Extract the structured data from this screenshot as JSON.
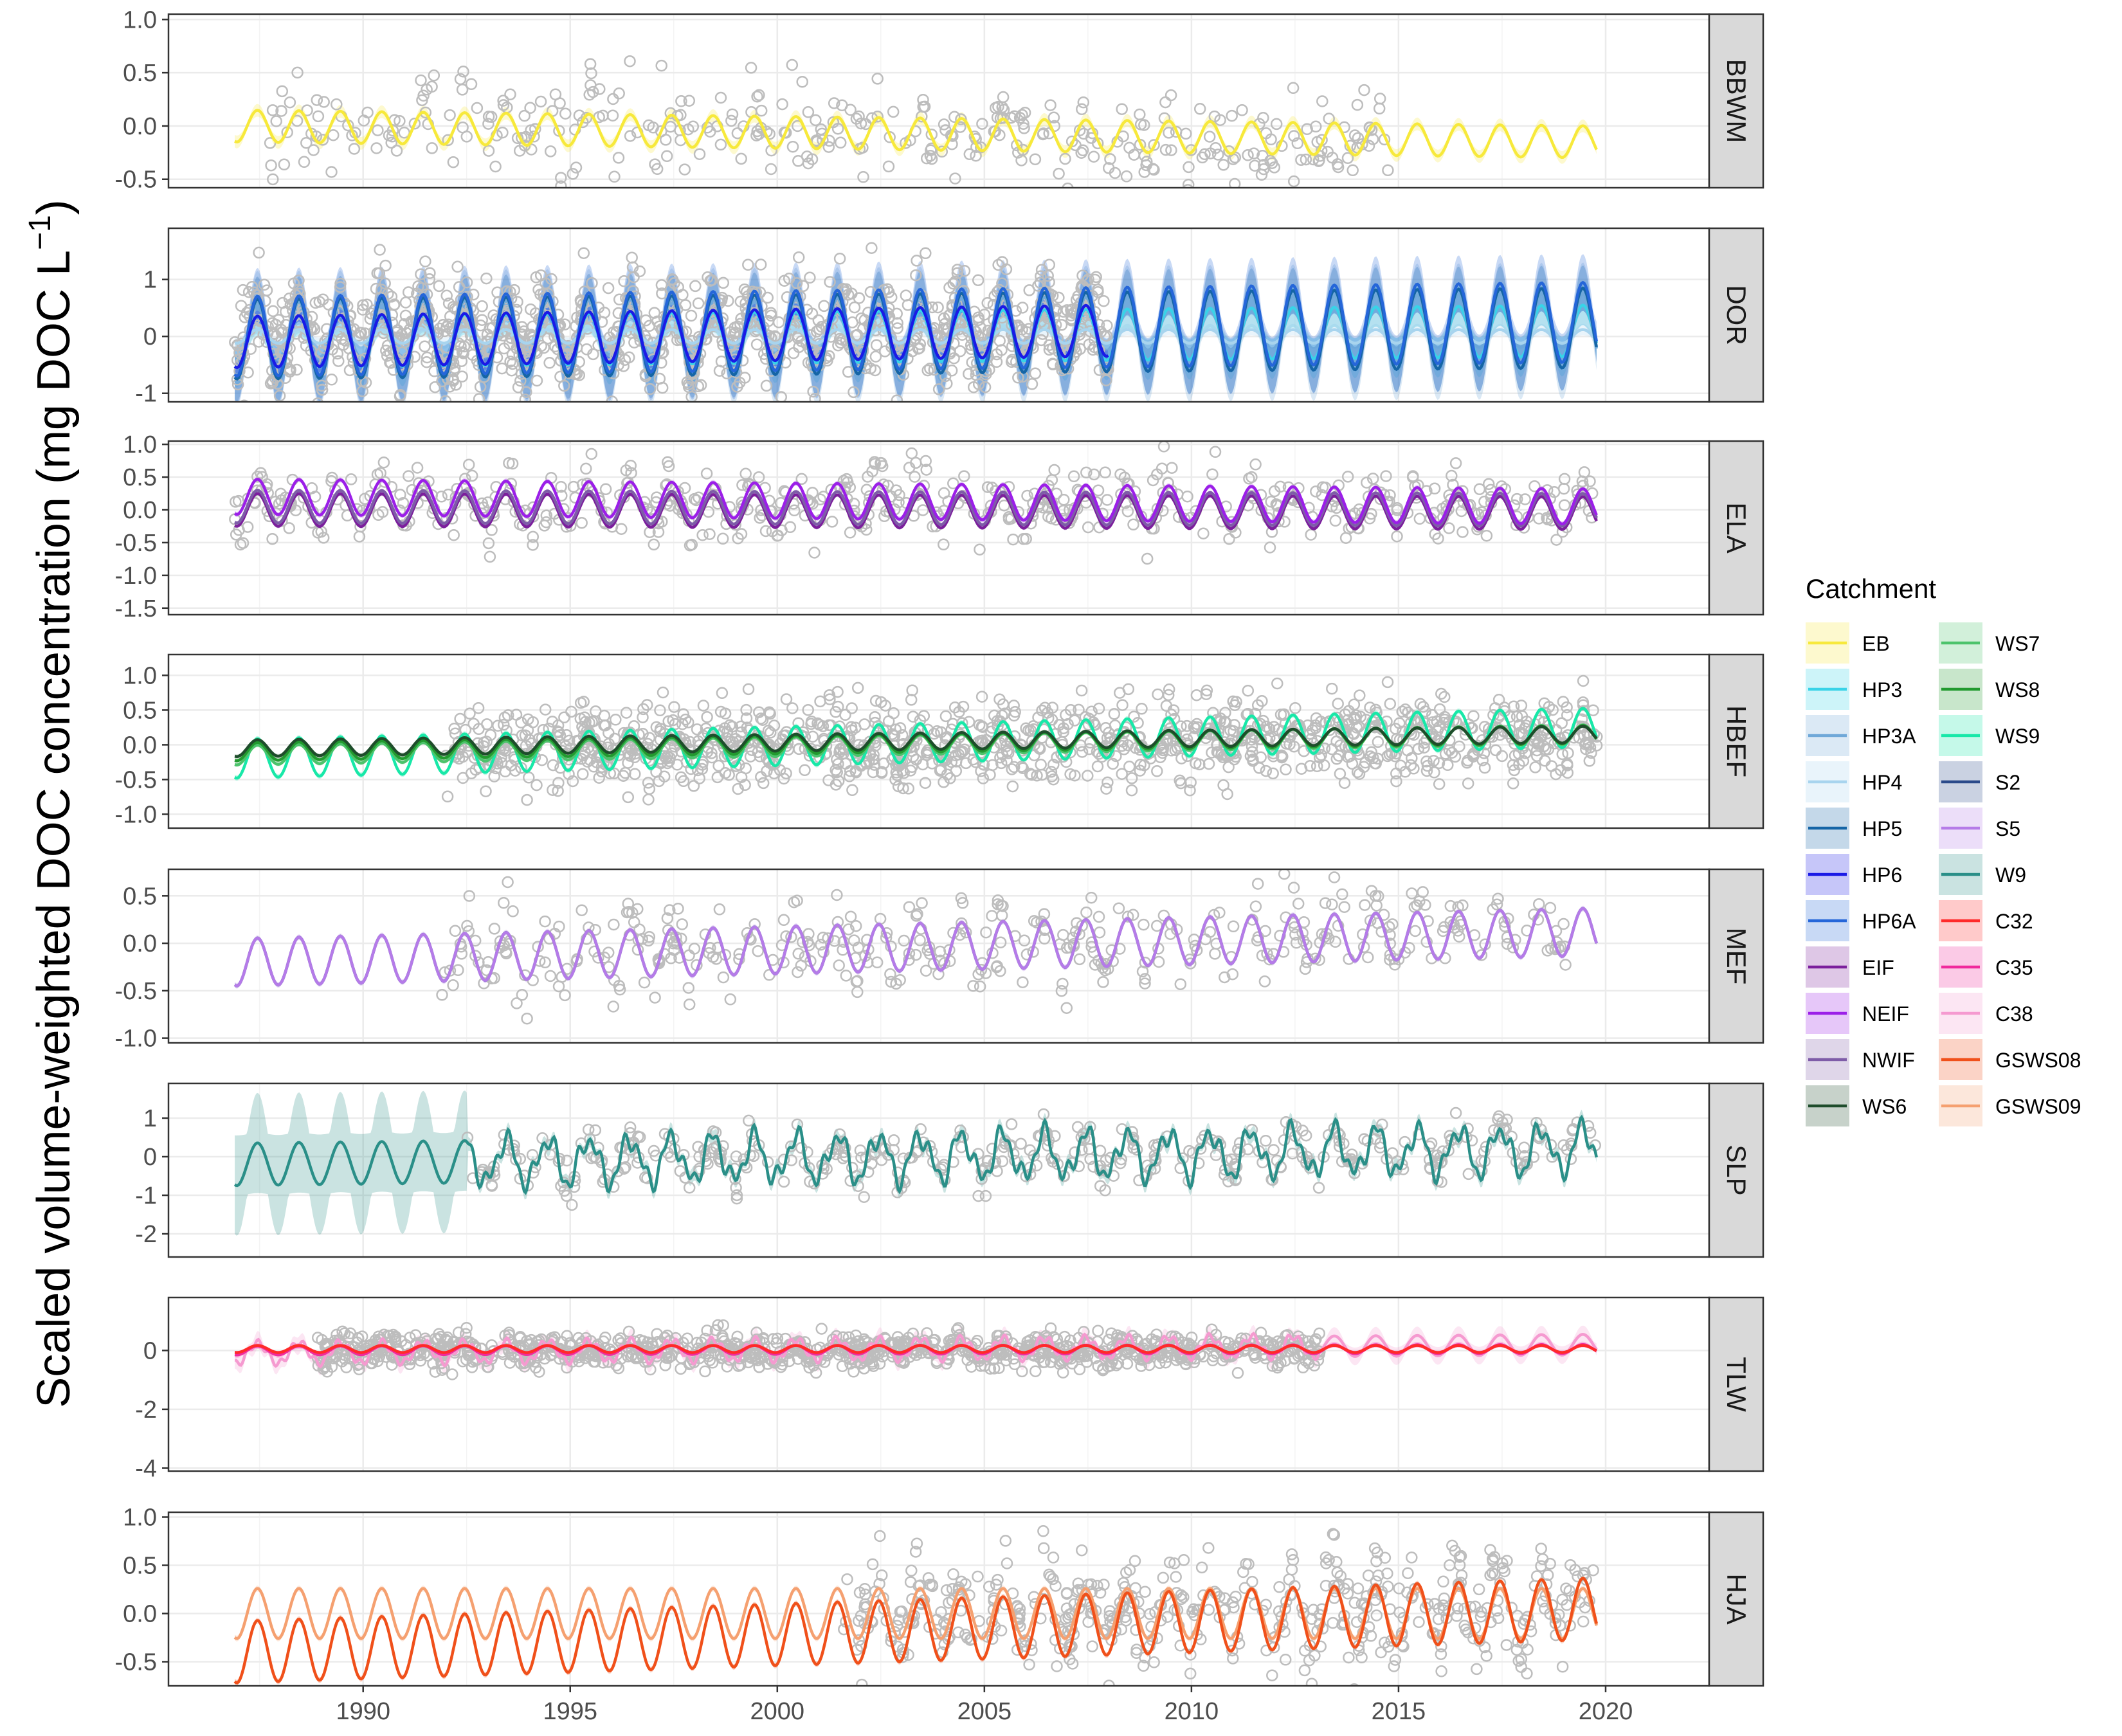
{
  "chart_data": {
    "type": "line",
    "y_axis_label": "Scaled volume-weighted DOC concentration (mg DOC L",
    "y_axis_label_sup": "−1",
    "y_axis_label_end": ")",
    "x_ticks": [
      1990,
      1995,
      2000,
      2005,
      2010,
      2015,
      2020
    ],
    "xlim": [
      1985.3,
      2022.5
    ],
    "legend_title": "Catchment",
    "legend": [
      {
        "name": "EB",
        "color": "#f7e93b"
      },
      {
        "name": "HP3",
        "color": "#39d3e8"
      },
      {
        "name": "HP3A",
        "color": "#6fa8d8"
      },
      {
        "name": "HP4",
        "color": "#a8d4ee"
      },
      {
        "name": "HP5",
        "color": "#1565a6"
      },
      {
        "name": "HP6",
        "color": "#1a1ae6"
      },
      {
        "name": "HP6A",
        "color": "#2566d9"
      },
      {
        "name": "EIF",
        "color": "#7b1f9c"
      },
      {
        "name": "NEIF",
        "color": "#9b1fe8"
      },
      {
        "name": "NWIF",
        "color": "#7e5ca8"
      },
      {
        "name": "WS6",
        "color": "#1e4d2b"
      },
      {
        "name": "WS7",
        "color": "#4cc36b"
      },
      {
        "name": "WS8",
        "color": "#229a2f"
      },
      {
        "name": "WS9",
        "color": "#18e8a8"
      },
      {
        "name": "S2",
        "color": "#2a4a8a"
      },
      {
        "name": "S5",
        "color": "#b57be8"
      },
      {
        "name": "W9",
        "color": "#2a8f88"
      },
      {
        "name": "C32",
        "color": "#ff2a2a"
      },
      {
        "name": "C35",
        "color": "#f02a9c"
      },
      {
        "name": "C38",
        "color": "#f59ad0"
      },
      {
        "name": "GSWS08",
        "color": "#f0501a"
      },
      {
        "name": "GSWS09",
        "color": "#f5a070"
      }
    ],
    "panels": [
      {
        "strip": "BBWM",
        "ylim": [
          -0.58,
          1.05
        ],
        "yticks": [
          1.0,
          0.5,
          0.0,
          -0.5
        ],
        "tick_labels": [
          "1.0",
          "0.5",
          "0.0",
          "-0.5"
        ],
        "obs_range": [
          1987.7,
          2014.8
        ],
        "obs_per_year": 14,
        "obs_spread": 0.22,
        "obs_trend": [
          0.05,
          -0.15
        ],
        "series": [
          {
            "name": "EB",
            "color": "#f7e93b",
            "start": 1986.9,
            "end": 2019.8,
            "amp": 0.15,
            "trend": [
              0.0,
              -0.15
            ],
            "band": 0.06
          }
        ]
      },
      {
        "strip": "DOR",
        "ylim": [
          -1.15,
          1.9
        ],
        "yticks": [
          1,
          0,
          -1
        ],
        "tick_labels": [
          "1",
          "0",
          "-1"
        ],
        "obs_range": [
          1986.9,
          2008.0
        ],
        "obs_per_year": 55,
        "obs_spread": 0.45,
        "obs_trend": [
          0.0,
          0.2
        ],
        "series": [
          {
            "name": "HP4",
            "color": "#a8d4ee",
            "start": 1986.9,
            "end": 2019.8,
            "amp": 0.12,
            "trend": [
              0.0,
              0.0
            ],
            "band": 0.1
          },
          {
            "name": "HP3",
            "color": "#39d3e8",
            "start": 1986.9,
            "end": 2019.8,
            "amp": 0.45,
            "trend": [
              -0.1,
              0.1
            ],
            "band": 0.35
          },
          {
            "name": "HP3A",
            "color": "#6fa8d8",
            "start": 1986.9,
            "end": 2019.8,
            "amp": 0.65,
            "trend": [
              -0.05,
              0.1
            ],
            "band": 0.55
          },
          {
            "name": "HP5",
            "color": "#1565a6",
            "start": 1986.9,
            "end": 2019.8,
            "amp": 0.7,
            "trend": [
              -0.05,
              0.15
            ],
            "band": 0.4
          },
          {
            "name": "HP6A",
            "color": "#2566d9",
            "start": 1986.9,
            "end": 2019.8,
            "amp": 0.7,
            "trend": [
              0.0,
              0.25
            ],
            "band": 0.5
          },
          {
            "name": "HP6",
            "color": "#1a1ae6",
            "start": 1986.9,
            "end": 2008.0,
            "amp": 0.45,
            "trend": [
              -0.1,
              0.1
            ],
            "band": 0.1
          }
        ]
      },
      {
        "strip": "ELA",
        "ylim": [
          -1.6,
          1.05
        ],
        "yticks": [
          1.0,
          0.5,
          0.0,
          -0.5,
          -1.0,
          -1.5
        ],
        "tick_labels": [
          "1.0",
          "0.5",
          "0.0",
          "-0.5",
          "-1.0",
          "-1.5"
        ],
        "obs_range": [
          1986.9,
          2019.7
        ],
        "obs_per_year": 18,
        "obs_spread": 0.25,
        "obs_trend": [
          0.1,
          0.1
        ],
        "series": [
          {
            "name": "EIF",
            "color": "#7b1f9c",
            "start": 1986.9,
            "end": 2019.8,
            "amp": 0.25,
            "trend": [
              0.0,
              -0.05
            ],
            "band": 0.03
          },
          {
            "name": "NWIF",
            "color": "#7e5ca8",
            "start": 1986.9,
            "end": 2019.8,
            "amp": 0.25,
            "trend": [
              0.05,
              0.0
            ],
            "band": 0.03
          },
          {
            "name": "NEIF",
            "color": "#9b1fe8",
            "start": 1986.9,
            "end": 2019.8,
            "amp": 0.27,
            "trend": [
              0.2,
              0.05
            ],
            "band": 0.04
          }
        ]
      },
      {
        "strip": "HBEF",
        "ylim": [
          -1.2,
          1.3
        ],
        "yticks": [
          1.0,
          0.5,
          0.0,
          -0.5,
          -1.0
        ],
        "tick_labels": [
          "1.0",
          "0.5",
          "0.0",
          "-0.5",
          "-1.0"
        ],
        "obs_range": [
          1992.0,
          2019.8
        ],
        "obs_per_year": 45,
        "obs_spread": 0.3,
        "obs_trend": [
          -0.05,
          0.15
        ],
        "series": [
          {
            "name": "WS9",
            "color": "#18e8a8",
            "start": 1986.9,
            "end": 2019.8,
            "amp": 0.28,
            "trend": [
              -0.2,
              0.25
            ],
            "band": 0.04
          },
          {
            "name": "WS7",
            "color": "#4cc36b",
            "start": 1986.9,
            "end": 2019.8,
            "amp": 0.14,
            "trend": [
              -0.15,
              0.15
            ],
            "band": 0.03
          },
          {
            "name": "WS8",
            "color": "#229a2f",
            "start": 1986.9,
            "end": 2019.8,
            "amp": 0.13,
            "trend": [
              -0.1,
              0.15
            ],
            "band": 0.03
          },
          {
            "name": "WS6",
            "color": "#1e4d2b",
            "start": 1986.9,
            "end": 2019.8,
            "amp": 0.12,
            "trend": [
              -0.05,
              0.15
            ],
            "band": 0.03
          }
        ]
      },
      {
        "strip": "MEF",
        "ylim": [
          -1.05,
          0.78
        ],
        "yticks": [
          0.5,
          0.0,
          -0.5,
          -1.0
        ],
        "tick_labels": [
          "0.5",
          "0.0",
          "-0.5",
          "-1.0"
        ],
        "obs_range": [
          1991.9,
          2019.3
        ],
        "obs_per_year": 15,
        "obs_spread": 0.2,
        "obs_trend": [
          -0.15,
          0.15
        ],
        "series": [
          {
            "name": "S2",
            "color": "#2a4a8a",
            "start": 1986.9,
            "end": 2019.8,
            "amp": 0.25,
            "trend": [
              -0.2,
              0.12
            ],
            "band": 0.02
          },
          {
            "name": "S5",
            "color": "#b57be8",
            "start": 1986.9,
            "end": 2019.8,
            "amp": 0.25,
            "trend": [
              -0.2,
              0.12
            ],
            "band": 0.03
          }
        ]
      },
      {
        "strip": "SLP",
        "ylim": [
          -2.6,
          1.9
        ],
        "yticks": [
          1,
          0,
          -1,
          -2
        ],
        "tick_labels": [
          "1",
          "0",
          "-1",
          "-2"
        ],
        "obs_range": [
          1992.5,
          2019.8
        ],
        "obs_per_year": 16,
        "obs_spread": 0.3,
        "obs_trend": [
          -0.2,
          0.3
        ],
        "series": [
          {
            "name": "W9",
            "color": "#2a8f88",
            "start": 1986.9,
            "end": 2019.8,
            "amp": 0.55,
            "trend": [
              -0.2,
              0.2
            ],
            "band": 0.2,
            "noisy_from": 1992.5,
            "wide_band_until": 1992.5,
            "wide_band": 1.3
          }
        ]
      },
      {
        "strip": "TLW",
        "ylim": [
          -4.1,
          1.8
        ],
        "yticks": [
          0,
          -2,
          -4
        ],
        "tick_labels": [
          "0",
          "-2",
          "-4"
        ],
        "obs_range": [
          1988.9,
          2013.1
        ],
        "obs_per_year": 45,
        "obs_spread": 0.3,
        "obs_trend": [
          0.0,
          0.0
        ],
        "series": [
          {
            "name": "C38",
            "color": "#f59ad0",
            "start": 1986.9,
            "end": 2019.8,
            "amp": 0.35,
            "trend": [
              -0.1,
              0.2
            ],
            "band": 0.3,
            "noisy_until": 2013.1
          },
          {
            "name": "C35",
            "color": "#f02a9c",
            "start": 1986.9,
            "end": 2019.8,
            "amp": 0.15,
            "trend": [
              0.0,
              0.05
            ],
            "band": 0.1
          },
          {
            "name": "C32",
            "color": "#ff2a2a",
            "start": 1986.9,
            "end": 2019.8,
            "amp": 0.12,
            "trend": [
              0.05,
              0.05
            ],
            "band": 0.05
          }
        ]
      },
      {
        "strip": "HJA",
        "ylim": [
          -0.75,
          1.05
        ],
        "yticks": [
          1.0,
          0.5,
          0.0,
          -0.5
        ],
        "tick_labels": [
          "1.0",
          "0.5",
          "0.0",
          "-0.5"
        ],
        "obs_range": [
          2001.6,
          2019.7
        ],
        "obs_per_year": 28,
        "obs_spread": 0.25,
        "obs_trend": [
          0.0,
          0.1
        ],
        "series": [
          {
            "name": "GSWS09",
            "color": "#f5a070",
            "start": 1986.9,
            "end": 2019.8,
            "amp": 0.26,
            "trend": [
              0.0,
              0.0
            ],
            "band": 0.03
          },
          {
            "name": "GSWS08",
            "color": "#f0501a",
            "start": 1986.9,
            "end": 2019.8,
            "amp": 0.32,
            "trend": [
              -0.4,
              0.05
            ],
            "band": 0.03
          }
        ]
      }
    ]
  }
}
